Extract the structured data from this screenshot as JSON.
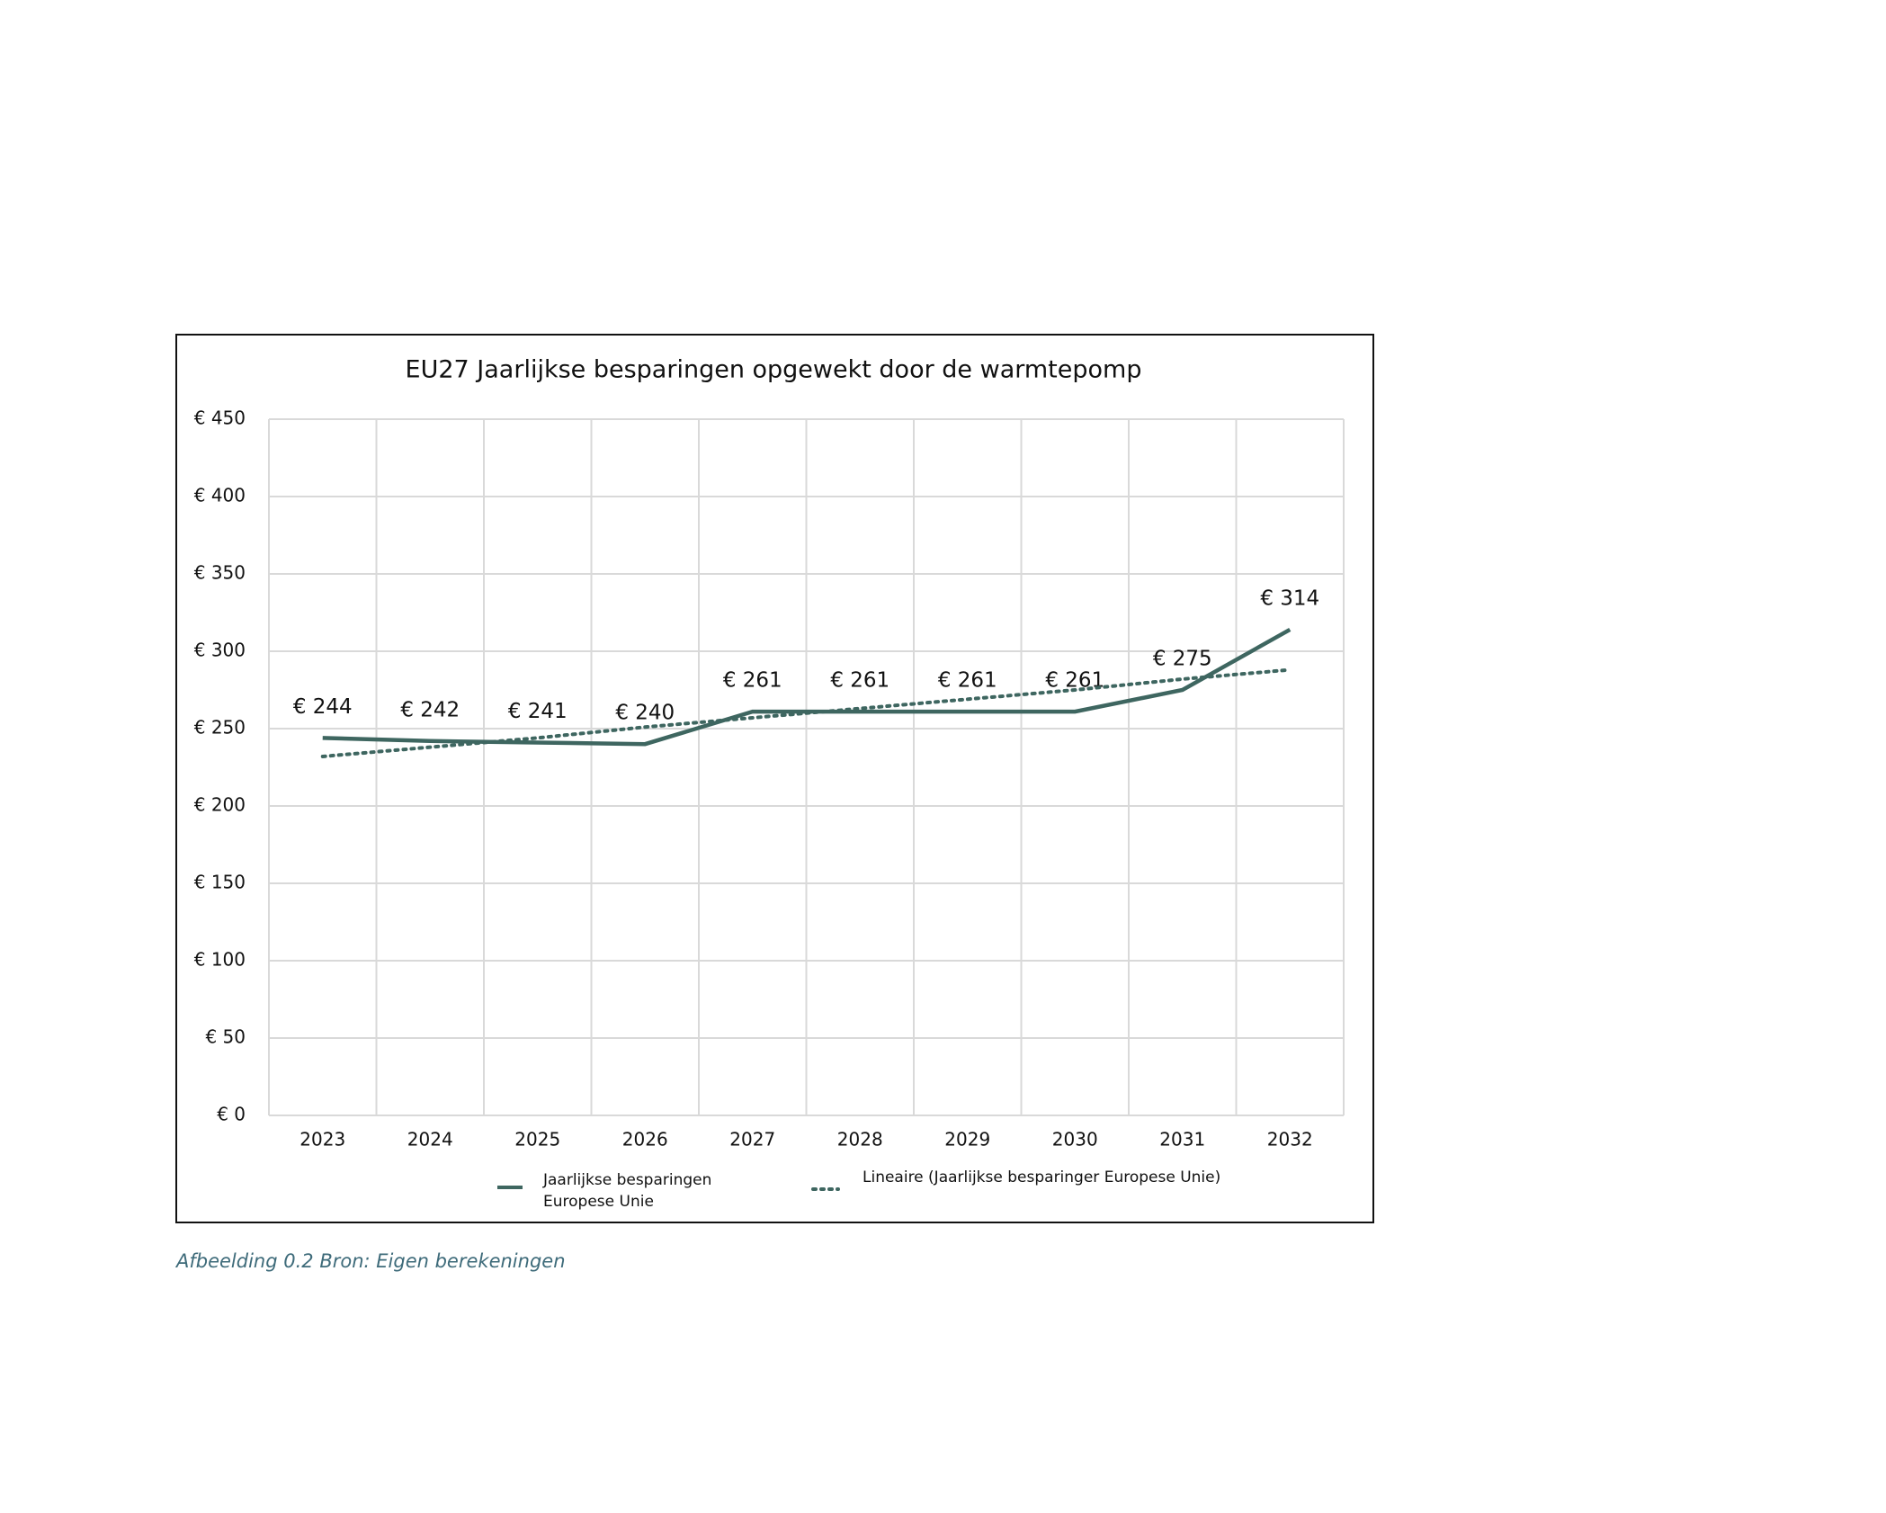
{
  "chart_data": {
    "type": "line",
    "title": "EU27 Jaarlijkse besparingen opgewekt door de warmtepomp",
    "categories": [
      "2023",
      "2024",
      "2025",
      "2026",
      "2027",
      "2028",
      "2029",
      "2030",
      "2031",
      "2032"
    ],
    "series": [
      {
        "name": "Jaarlijkse besparingen Europese Unie",
        "color": "#3e6660",
        "style": "solid",
        "values": [
          244,
          242,
          241,
          240,
          261,
          261,
          261,
          261,
          275,
          314
        ],
        "value_labels": [
          "€ 244",
          "€ 242",
          "€ 241",
          "€ 240",
          "€ 261",
          "€ 261",
          "€ 261",
          "€ 261",
          "€ 275",
          "€ 314"
        ]
      },
      {
        "name": "Lineaire (Jaarlijkse besparinger Europese Unie)",
        "color": "#3e6660",
        "style": "dotted",
        "values": [
          232,
          238,
          244,
          251,
          257,
          263,
          269,
          275,
          282,
          288
        ]
      }
    ],
    "ylim": [
      0,
      450
    ],
    "yticks": [
      {
        "value": 0,
        "label": "€ 0"
      },
      {
        "value": 50,
        "label": "€ 50"
      },
      {
        "value": 100,
        "label": "€ 100"
      },
      {
        "value": 150,
        "label": "€ 150"
      },
      {
        "value": 200,
        "label": "€ 200"
      },
      {
        "value": 250,
        "label": "€ 250"
      },
      {
        "value": 300,
        "label": "€ 300"
      },
      {
        "value": 350,
        "label": "€ 350"
      },
      {
        "value": 400,
        "label": "€ 400"
      },
      {
        "value": 450,
        "label": "€ 450"
      }
    ],
    "grid": true,
    "legend": "bottom",
    "caption": "Afbeelding 0.2 Bron: Eigen berekeningen"
  }
}
